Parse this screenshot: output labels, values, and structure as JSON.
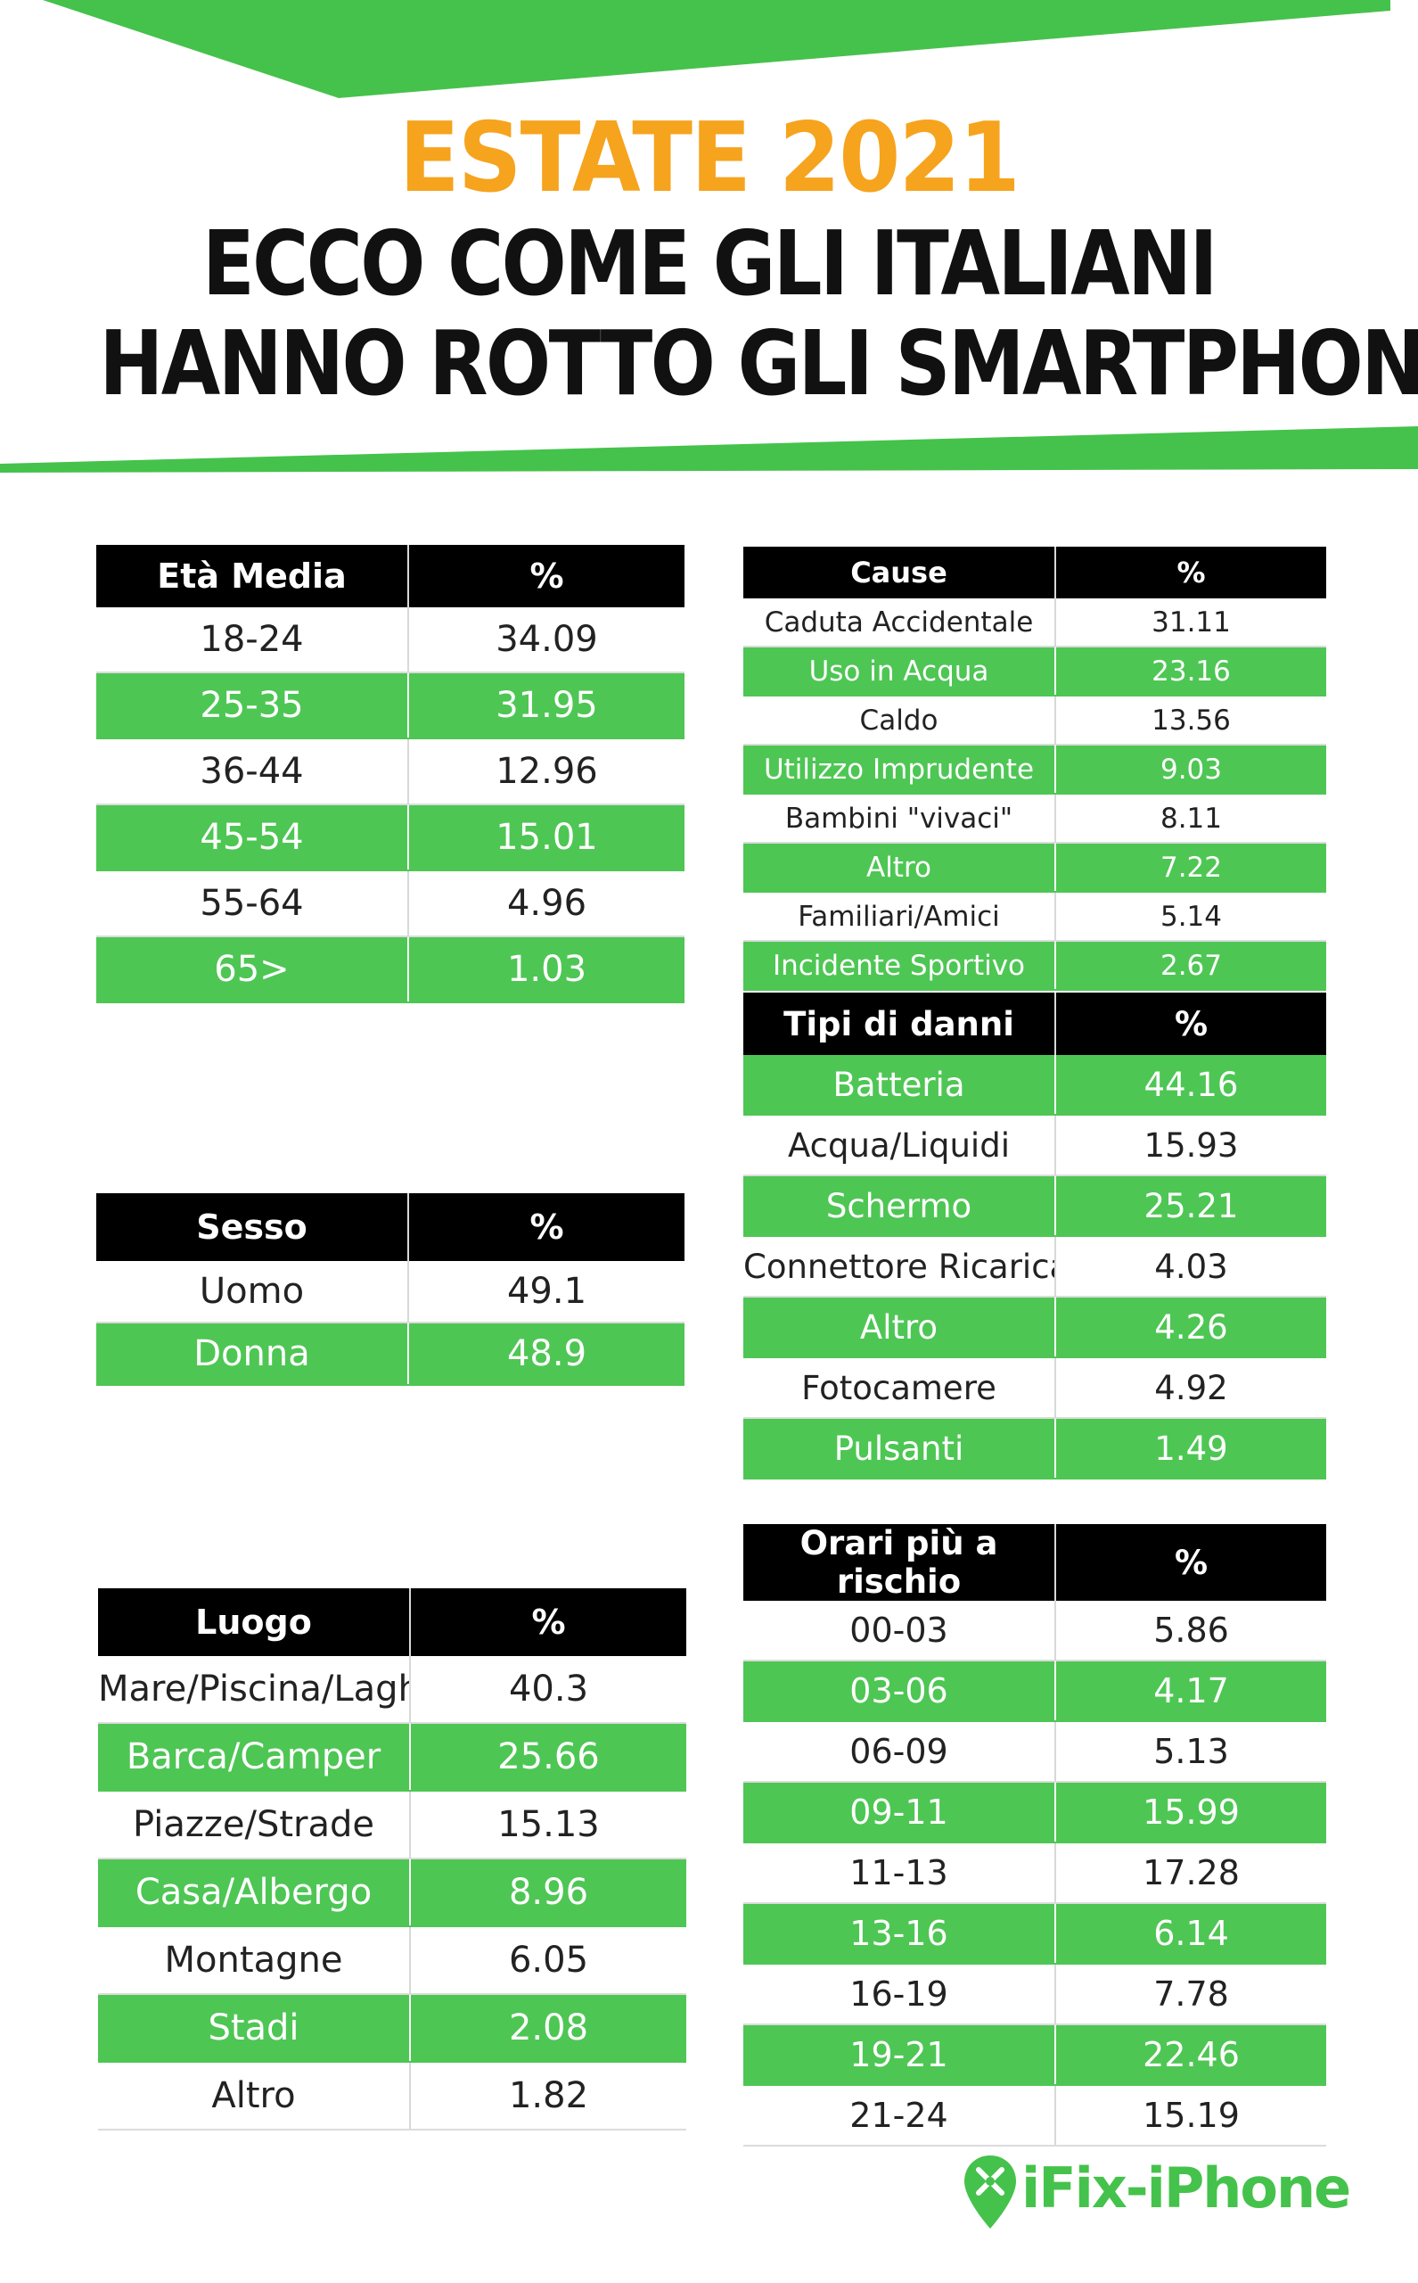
{
  "header": {
    "title": "ESTATE 2021",
    "subtitle_line1": "ECCO COME GLI ITALIANI",
    "subtitle_line2": "HANNO ROTTO GLI SMARTPHONE"
  },
  "colors": {
    "accent_green": "#4ec654",
    "title_orange": "#f6a31e",
    "header_black": "#000000"
  },
  "logo": {
    "text": "iFix-iPhone",
    "icon": "pin-wrench-icon"
  },
  "chart_data": [
    {
      "type": "table",
      "title": "Età Media",
      "columns": [
        "Età Media",
        "%"
      ],
      "rows": [
        [
          "18-24",
          "34.09"
        ],
        [
          "25-35",
          "31.95"
        ],
        [
          "36-44",
          "12.96"
        ],
        [
          "45-54",
          "15.01"
        ],
        [
          "55-64",
          "4.96"
        ],
        [
          "65>",
          "1.03"
        ]
      ]
    },
    {
      "type": "table",
      "title": "Sesso",
      "columns": [
        "Sesso",
        "%"
      ],
      "rows": [
        [
          "Uomo",
          "49.1"
        ],
        [
          "Donna",
          "48.9"
        ]
      ]
    },
    {
      "type": "table",
      "title": "Luogo",
      "columns": [
        "Luogo",
        "%"
      ],
      "rows": [
        [
          "Mare/Piscina/Laghi",
          "40.3"
        ],
        [
          "Barca/Camper",
          "25.66"
        ],
        [
          "Piazze/Strade",
          "15.13"
        ],
        [
          "Casa/Albergo",
          "8.96"
        ],
        [
          "Montagne",
          "6.05"
        ],
        [
          "Stadi",
          "2.08"
        ],
        [
          "Altro",
          "1.82"
        ]
      ]
    },
    {
      "type": "table",
      "title": "Cause",
      "columns": [
        "Cause",
        "%"
      ],
      "rows": [
        [
          "Caduta Accidentale",
          "31.11"
        ],
        [
          "Uso in Acqua",
          "23.16"
        ],
        [
          "Caldo",
          "13.56"
        ],
        [
          "Utilizzo Imprudente",
          "9.03"
        ],
        [
          "Bambini \"vivaci\"",
          "8.11"
        ],
        [
          "Altro",
          "7.22"
        ],
        [
          "Familiari/Amici",
          "5.14"
        ],
        [
          "Incidente Sportivo",
          "2.67"
        ]
      ]
    },
    {
      "type": "table",
      "title": "Tipi di danni",
      "columns": [
        "Tipi di danni",
        "%"
      ],
      "rows": [
        [
          "Batteria",
          "44.16"
        ],
        [
          "Acqua/Liquidi",
          "15.93"
        ],
        [
          "Schermo",
          "25.21"
        ],
        [
          "Connettore Ricarica",
          "4.03"
        ],
        [
          "Altro",
          "4.26"
        ],
        [
          "Fotocamere",
          "4.92"
        ],
        [
          "Pulsanti",
          "1.49"
        ]
      ]
    },
    {
      "type": "table",
      "title": "Orari più a rischio",
      "columns": [
        "Orari più a rischio",
        "%"
      ],
      "rows": [
        [
          "00-03",
          "5.86"
        ],
        [
          "03-06",
          "4.17"
        ],
        [
          "06-09",
          "5.13"
        ],
        [
          "09-11",
          "15.99"
        ],
        [
          "11-13",
          "17.28"
        ],
        [
          "13-16",
          "6.14"
        ],
        [
          "16-19",
          "7.78"
        ],
        [
          "19-21",
          "22.46"
        ],
        [
          "21-24",
          "15.19"
        ]
      ]
    }
  ]
}
